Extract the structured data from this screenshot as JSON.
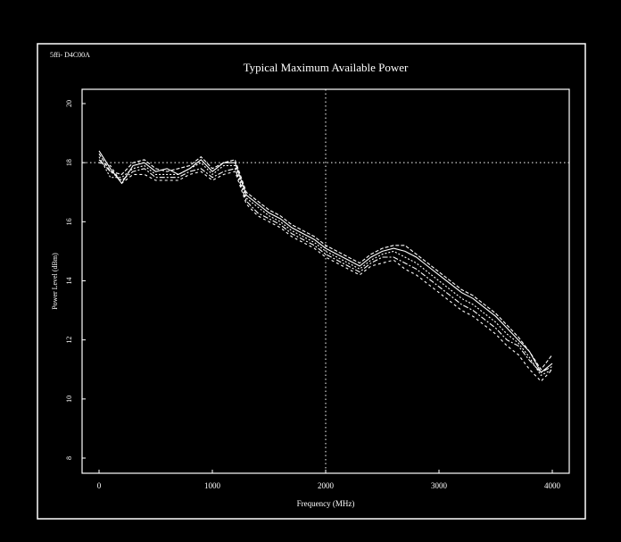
{
  "chart_data": {
    "type": "line",
    "code_label": "5ffi- D4C00A",
    "title": "Typical Maximum Available Power",
    "xlabel": "Frequency (MHz)",
    "ylabel": "Power Level (dBm)",
    "x_ticks": [
      "0",
      "1000",
      "2000",
      "3000",
      "4000"
    ],
    "y_ticks": [
      "20",
      "18",
      "16",
      "14",
      "12",
      "10",
      "8"
    ],
    "xlim": [
      0,
      4000
    ],
    "ylim": [
      7,
      21
    ],
    "grid": "dotted crosshair at x=2000 and y=18",
    "colors": {
      "background": "#000000",
      "foreground": "#ffffff"
    },
    "series": [
      {
        "x": [
          0,
          100,
          200,
          300,
          400,
          500,
          600,
          700,
          800,
          900,
          1000,
          1100,
          1200,
          1300,
          1400,
          1500,
          1600,
          1700,
          1800,
          1900,
          2000,
          2100,
          2200,
          2300,
          2400,
          2500,
          2600,
          2700,
          2800,
          2900,
          3000,
          3100,
          3200,
          3300,
          3400,
          3500,
          3600,
          3700,
          3800,
          3900,
          4000
        ],
        "y": [
          18.4,
          17.8,
          17.3,
          17.9,
          18.0,
          17.7,
          17.8,
          17.6,
          17.8,
          18.1,
          17.7,
          18.0,
          18.0,
          16.9,
          16.6,
          16.3,
          16.1,
          15.8,
          15.6,
          15.4,
          15.1,
          14.9,
          14.7,
          14.5,
          14.8,
          15.0,
          15.1,
          15.0,
          14.8,
          14.5,
          14.2,
          13.9,
          13.6,
          13.4,
          13.1,
          12.8,
          12.4,
          12.0,
          11.6,
          10.9,
          11.2
        ]
      },
      {
        "x": [
          0,
          100,
          200,
          300,
          400,
          500,
          600,
          700,
          800,
          900,
          1000,
          1100,
          1200,
          1300,
          1400,
          1500,
          1600,
          1700,
          1800,
          1900,
          2000,
          2100,
          2200,
          2300,
          2400,
          2500,
          2600,
          2700,
          2800,
          2900,
          3000,
          3100,
          3200,
          3300,
          3400,
          3500,
          3600,
          3700,
          3800,
          3900,
          4000
        ],
        "y": [
          18.3,
          17.7,
          17.6,
          18.0,
          18.1,
          17.8,
          17.7,
          17.8,
          17.9,
          18.2,
          17.8,
          18.0,
          18.1,
          17.0,
          16.7,
          16.4,
          16.2,
          15.9,
          15.7,
          15.5,
          15.2,
          15.0,
          14.8,
          14.6,
          14.9,
          15.1,
          15.2,
          15.2,
          14.9,
          14.6,
          14.3,
          14.0,
          13.7,
          13.5,
          13.2,
          12.9,
          12.5,
          12.1,
          11.6,
          11.0,
          11.5
        ]
      },
      {
        "x": [
          0,
          100,
          200,
          300,
          400,
          500,
          600,
          700,
          800,
          900,
          1000,
          1100,
          1200,
          1300,
          1400,
          1500,
          1600,
          1700,
          1800,
          1900,
          2000,
          2100,
          2200,
          2300,
          2400,
          2500,
          2600,
          2700,
          2800,
          2900,
          3000,
          3100,
          3200,
          3300,
          3400,
          3500,
          3600,
          3700,
          3800,
          3900,
          4000
        ],
        "y": [
          18.2,
          17.5,
          17.5,
          17.8,
          17.9,
          17.6,
          17.6,
          17.6,
          17.8,
          18.0,
          17.6,
          17.9,
          17.9,
          16.8,
          16.5,
          16.2,
          16.0,
          15.7,
          15.5,
          15.3,
          15.0,
          14.8,
          14.6,
          14.4,
          14.7,
          14.9,
          15.0,
          14.8,
          14.6,
          14.3,
          14.0,
          13.7,
          13.4,
          13.2,
          12.9,
          12.6,
          12.2,
          11.9,
          11.4,
          10.8,
          11.0
        ]
      },
      {
        "x": [
          0,
          100,
          200,
          300,
          400,
          500,
          600,
          700,
          800,
          900,
          1000,
          1100,
          1200,
          1300,
          1400,
          1500,
          1600,
          1700,
          1800,
          1900,
          2000,
          2100,
          2200,
          2300,
          2400,
          2500,
          2600,
          2700,
          2800,
          2900,
          3000,
          3100,
          3200,
          3300,
          3400,
          3500,
          3600,
          3700,
          3800,
          3900,
          4000
        ],
        "y": [
          18.1,
          17.7,
          17.4,
          17.7,
          17.8,
          17.5,
          17.5,
          17.5,
          17.7,
          17.8,
          17.5,
          17.7,
          17.8,
          16.7,
          16.3,
          16.1,
          15.9,
          15.6,
          15.4,
          15.2,
          14.9,
          14.7,
          14.5,
          14.3,
          14.6,
          14.8,
          14.8,
          14.6,
          14.4,
          14.1,
          13.8,
          13.5,
          13.2,
          13.0,
          12.7,
          12.4,
          12.0,
          11.8,
          11.3,
          10.9,
          11.1
        ]
      },
      {
        "x": [
          0,
          100,
          200,
          300,
          400,
          500,
          600,
          700,
          800,
          900,
          1000,
          1100,
          1200,
          1300,
          1400,
          1500,
          1600,
          1700,
          1800,
          1900,
          2000,
          2100,
          2200,
          2300,
          2400,
          2500,
          2600,
          2700,
          2800,
          2900,
          3000,
          3100,
          3200,
          3300,
          3400,
          3500,
          3600,
          3700,
          3800,
          3900,
          4000
        ],
        "y": [
          18.0,
          17.9,
          17.3,
          17.6,
          17.6,
          17.4,
          17.4,
          17.4,
          17.6,
          17.7,
          17.4,
          17.6,
          17.7,
          16.6,
          16.2,
          16.0,
          15.8,
          15.5,
          15.3,
          15.1,
          14.8,
          14.6,
          14.4,
          14.2,
          14.5,
          14.6,
          14.7,
          14.4,
          14.2,
          13.9,
          13.6,
          13.3,
          13.0,
          12.8,
          12.5,
          12.2,
          11.8,
          11.5,
          11.0,
          10.6,
          11.0
        ]
      }
    ]
  }
}
